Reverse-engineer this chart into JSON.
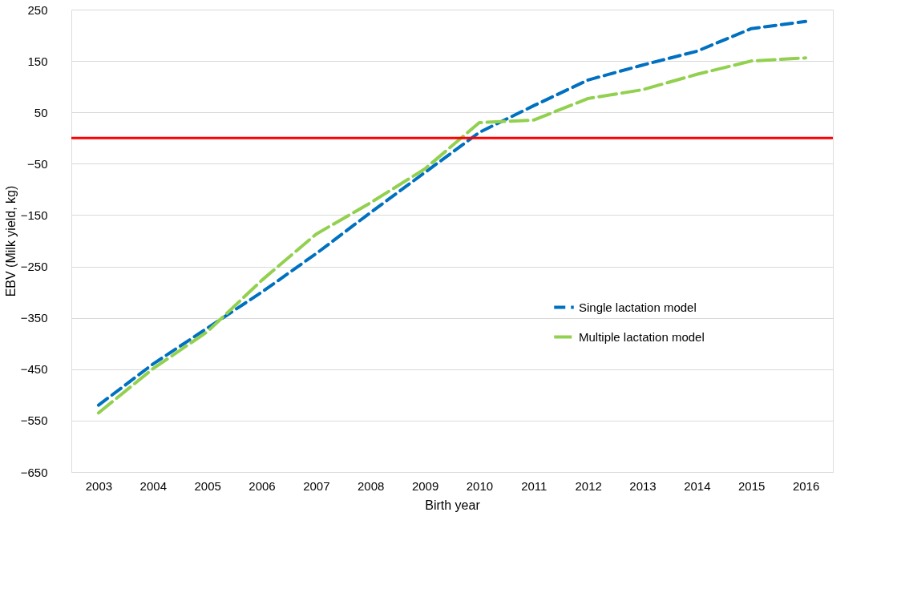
{
  "chart_data": {
    "type": "line",
    "xlabel": "Birth year",
    "ylabel": "EBV (Milk yield, kg)",
    "categories": [
      "2003",
      "2004",
      "2005",
      "2006",
      "2007",
      "2008",
      "2009",
      "2010",
      "2011",
      "2012",
      "2013",
      "2014",
      "2015",
      "2016"
    ],
    "series": [
      {
        "name": "Single lactation model",
        "color": "#0070c0",
        "line_style": "dashed",
        "values": [
          -520,
          -440,
          -370,
          -300,
          -225,
          -145,
          -67,
          11,
          63,
          113,
          142,
          169,
          213,
          227
        ]
      },
      {
        "name": "Multiple lactation model",
        "color": "#92d050",
        "line_style": "dashed",
        "values": [
          -535,
          -449,
          -377,
          -277,
          -187,
          -126,
          -60,
          30,
          35,
          77,
          94,
          124,
          150,
          156
        ]
      }
    ],
    "ylim": [
      -650,
      250
    ],
    "yticks": [
      -650,
      -550,
      -450,
      -350,
      -250,
      -150,
      -50,
      50,
      150,
      250
    ],
    "ref_lines": [
      {
        "axis": "y",
        "value": 0,
        "color": "#ff0000"
      }
    ],
    "grid": "y",
    "legend": "bottom right",
    "marker": "none"
  }
}
